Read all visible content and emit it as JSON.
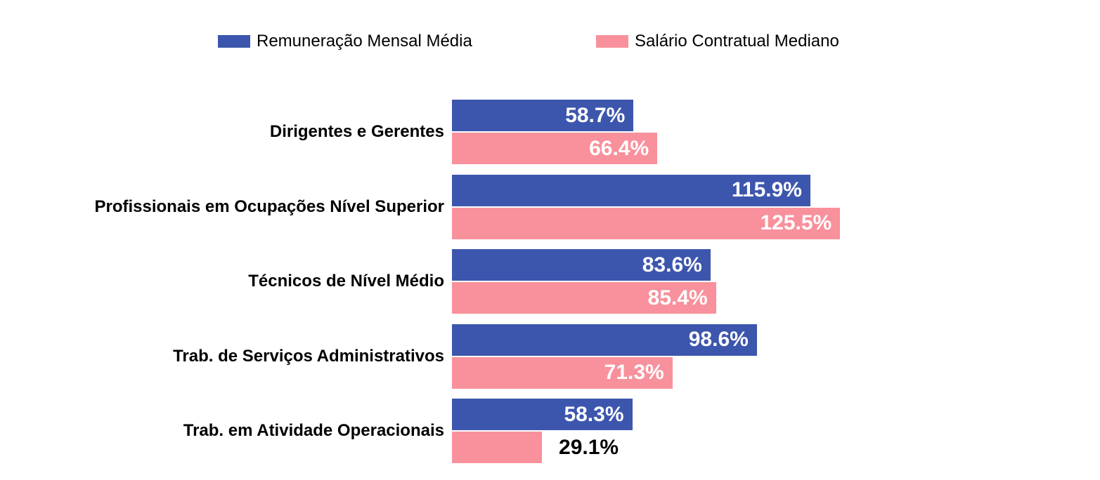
{
  "chart": {
    "legend": [
      {
        "label": "Remuneração Mensal Média"
      },
      {
        "label": "Salário Contratual Mediano"
      }
    ]
  },
  "chart_data": {
    "type": "bar",
    "orientation": "horizontal",
    "title": "",
    "xlabel": "",
    "ylabel": "",
    "grid": false,
    "legend_position": "top",
    "background": "#FFFFFF",
    "value_suffix": "%",
    "label_color_inside": "#FFFFFF",
    "label_color_outside": "#000000",
    "categories": [
      "Dirigentes e Gerentes",
      "Profissionais em Ocupações Nível Superior",
      "Técnicos de Nível Médio",
      "Trab. de Serviços Administrativos",
      "Trab. em Atividade Operacionais"
    ],
    "series": [
      {
        "name": "Remuneração Mensal Média",
        "color": "#3D56AD",
        "values": [
          58.7,
          115.9,
          83.6,
          98.6,
          58.3
        ],
        "labels": [
          "58.7%",
          "115.9%",
          "83.6%",
          "98.6%",
          "58.3%"
        ]
      },
      {
        "name": "Salário Contratual Mediano",
        "color": "#F8919C",
        "values": [
          66.4,
          125.5,
          85.4,
          71.3,
          29.1
        ],
        "labels": [
          "66.4%",
          "125.5%",
          "85.4%",
          "71.3%",
          "29.1%"
        ]
      }
    ],
    "outside_labels": [
      [
        false,
        false,
        false,
        false,
        false
      ],
      [
        false,
        false,
        false,
        false,
        true
      ]
    ]
  }
}
